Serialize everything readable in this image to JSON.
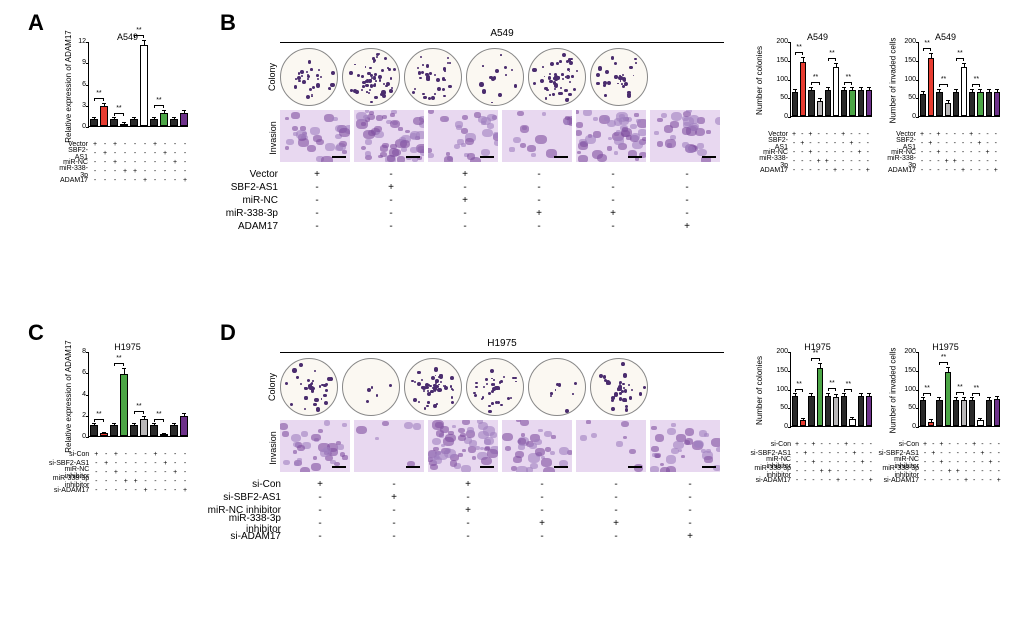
{
  "panels": {
    "A": "A",
    "B": "B",
    "C": "C",
    "D": "D"
  },
  "cellLines": {
    "a549": "A549",
    "h1975": "H1975"
  },
  "conditions_A": [
    "Vector",
    "SBF2-AS1",
    "miR-NC",
    "miR-338-3p",
    "ADAM17"
  ],
  "conditions_C": [
    "si-Con",
    "si-SBF2-AS1",
    "miR-NC inhibitor",
    "miR-338-3p inhibitor",
    "si-ADAM17"
  ],
  "assays": {
    "colony": "Colony",
    "invasion": "Invasion"
  },
  "ylabels": {
    "adam17": "Relative expression of ADAM17",
    "colonies": "Number of colonies",
    "invaded": "Number of invaded cells"
  },
  "sig": "**",
  "colors": {
    "black": "#2a2a2a",
    "red": "#e73c30",
    "gray": "#b9b7b8",
    "green": "#4ca646",
    "white": "#ffffff",
    "purple": "#6d318a",
    "border": "#000",
    "blob1": "#8050a0",
    "blob2": "#a080c0"
  },
  "chart_A": {
    "title": "A549",
    "ylim": 12,
    "yticks": [
      0,
      3,
      6,
      9,
      12
    ],
    "values": [
      1.0,
      2.8,
      1.0,
      0.35,
      1.0,
      11.5,
      1.0,
      1.9,
      1.0,
      1.9
    ],
    "errors": [
      0.1,
      0.3,
      0.1,
      0.05,
      0.1,
      0.5,
      0.1,
      0.2,
      0.1,
      0.2
    ],
    "barColors": [
      "black",
      "red",
      "black",
      "gray",
      "black",
      "white",
      "black",
      "green",
      "black",
      "purple"
    ],
    "sigs": [
      [
        0,
        1
      ],
      [
        2,
        3
      ],
      [
        4,
        5
      ],
      [
        6,
        7
      ]
    ]
  },
  "chart_C": {
    "title": "H1975",
    "ylim": 8,
    "yticks": [
      0,
      2,
      4,
      6,
      8
    ],
    "values": [
      1.0,
      0.25,
      1.0,
      5.8,
      1.0,
      1.6,
      1.0,
      0.2,
      1.0,
      1.9
    ],
    "errors": [
      0.1,
      0.03,
      0.1,
      0.5,
      0.1,
      0.15,
      0.1,
      0.03,
      0.1,
      0.2
    ],
    "barColors": [
      "black",
      "red",
      "black",
      "green",
      "black",
      "gray",
      "black",
      "white",
      "black",
      "purple"
    ],
    "sigs": [
      [
        0,
        1
      ],
      [
        2,
        3
      ],
      [
        4,
        5
      ],
      [
        6,
        7
      ]
    ]
  },
  "chart_B_col": {
    "title": "A549",
    "ylim": 200,
    "yticks": [
      0,
      50,
      100,
      150,
      200
    ],
    "values": [
      65,
      145,
      70,
      40,
      70,
      130,
      70,
      70,
      70,
      70
    ],
    "errors": [
      5,
      10,
      5,
      5,
      5,
      10,
      5,
      5,
      5,
      5
    ],
    "barColors": [
      "black",
      "red",
      "black",
      "gray",
      "black",
      "white",
      "black",
      "green",
      "black",
      "purple"
    ]
  },
  "chart_B_inv": {
    "title": "A549",
    "ylim": 200,
    "yticks": [
      0,
      50,
      100,
      150,
      200
    ],
    "values": [
      60,
      155,
      65,
      35,
      65,
      130,
      65,
      65,
      65,
      65
    ],
    "errors": [
      5,
      10,
      5,
      5,
      5,
      10,
      5,
      5,
      5,
      5
    ],
    "barColors": [
      "black",
      "red",
      "black",
      "gray",
      "black",
      "white",
      "black",
      "green",
      "black",
      "purple"
    ]
  },
  "chart_D_col": {
    "title": "H1975",
    "ylim": 200,
    "yticks": [
      0,
      50,
      100,
      150,
      200
    ],
    "values": [
      80,
      15,
      80,
      155,
      80,
      78,
      80,
      18,
      80,
      80
    ],
    "errors": [
      5,
      3,
      5,
      10,
      5,
      5,
      5,
      3,
      5,
      5
    ],
    "barColors": [
      "black",
      "red",
      "black",
      "green",
      "black",
      "gray",
      "black",
      "white",
      "black",
      "purple"
    ]
  },
  "chart_D_inv": {
    "title": "H1975",
    "ylim": 200,
    "yticks": [
      0,
      50,
      100,
      150,
      200
    ],
    "values": [
      70,
      12,
      70,
      145,
      70,
      70,
      70,
      15,
      70,
      72
    ],
    "errors": [
      5,
      3,
      5,
      10,
      5,
      5,
      5,
      3,
      5,
      5
    ],
    "barColors": [
      "black",
      "red",
      "black",
      "green",
      "black",
      "gray",
      "black",
      "white",
      "black",
      "purple"
    ]
  },
  "matrix_A": [
    [
      "+",
      "-",
      "+",
      "-",
      "-",
      "-",
      "+",
      "-",
      "-",
      "-"
    ],
    [
      "-",
      "+",
      "-",
      "-",
      "-",
      "-",
      "-",
      "+",
      "-",
      "-"
    ],
    [
      "-",
      "-",
      "+",
      "-",
      "-",
      "-",
      "-",
      "-",
      "+",
      "-"
    ],
    [
      "-",
      "-",
      "-",
      "+",
      "+",
      "-",
      "-",
      "-",
      "-",
      "-"
    ],
    [
      "-",
      "-",
      "-",
      "-",
      "-",
      "+",
      "-",
      "-",
      "-",
      "+"
    ]
  ],
  "matrix_C": [
    [
      "+",
      "-",
      "+",
      "-",
      "-",
      "-",
      "+",
      "-",
      "-",
      "-"
    ],
    [
      "-",
      "+",
      "-",
      "-",
      "-",
      "-",
      "-",
      "+",
      "-",
      "-"
    ],
    [
      "-",
      "-",
      "+",
      "-",
      "-",
      "-",
      "-",
      "-",
      "+",
      "-"
    ],
    [
      "-",
      "-",
      "-",
      "+",
      "+",
      "-",
      "-",
      "-",
      "-",
      "-"
    ],
    [
      "-",
      "-",
      "-",
      "-",
      "-",
      "+",
      "-",
      "-",
      "-",
      "+"
    ]
  ],
  "matrix_B6": [
    [
      "+",
      "-",
      "+",
      "-",
      "-",
      "-"
    ],
    [
      "-",
      "+",
      "-",
      "-",
      "-",
      "-"
    ],
    [
      "-",
      "-",
      "+",
      "-",
      "-",
      "-"
    ],
    [
      "-",
      "-",
      "-",
      "+",
      "+",
      "-"
    ],
    [
      "-",
      "-",
      "-",
      "-",
      "-",
      "+"
    ]
  ],
  "wells_B_density": [
    28,
    55,
    32,
    14,
    50,
    30
  ],
  "wells_D_density": [
    38,
    5,
    55,
    35,
    8,
    35
  ],
  "invasion_B_density": [
    30,
    55,
    32,
    15,
    50,
    32
  ],
  "invasion_D_density": [
    35,
    6,
    55,
    33,
    8,
    33
  ]
}
